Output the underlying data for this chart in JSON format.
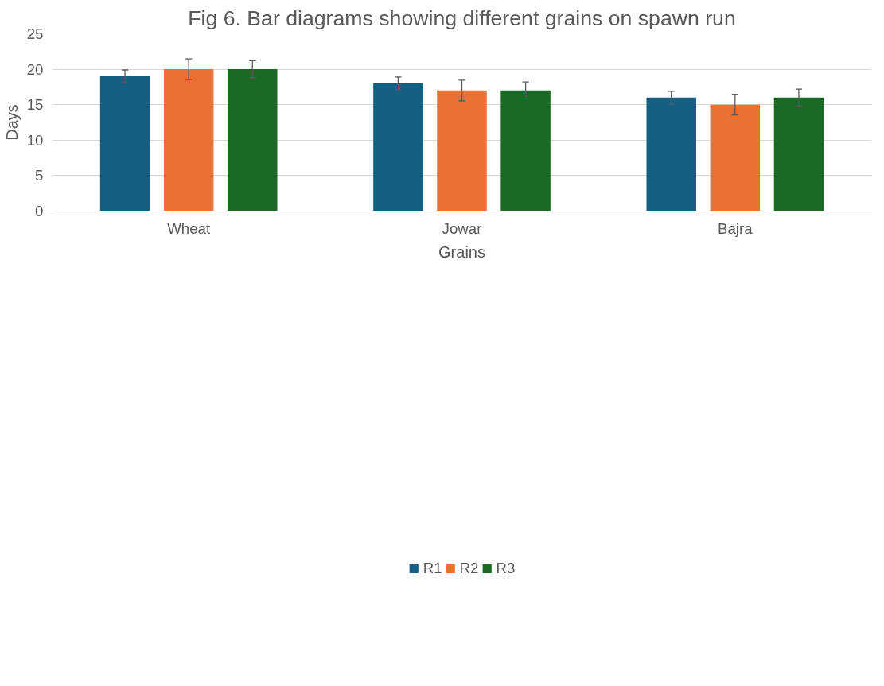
{
  "chart_data": {
    "type": "bar",
    "title": "Fig 6. Bar diagrams showing different grains on spawn run",
    "xlabel": "Grains",
    "ylabel": "Days",
    "categories": [
      "Wheat",
      "Jowar",
      "Bajra"
    ],
    "series": [
      {
        "name": "R1",
        "color": "#156082",
        "values": [
          19,
          18,
          16
        ],
        "errors": [
          0.9,
          0.9,
          0.9
        ]
      },
      {
        "name": "R2",
        "color": "#e97132",
        "values": [
          20,
          17,
          15
        ],
        "errors": [
          1.45,
          1.45,
          1.45
        ]
      },
      {
        "name": "R3",
        "color": "#196b24",
        "values": [
          20,
          17,
          16
        ],
        "errors": [
          1.2,
          1.2,
          1.2
        ]
      }
    ],
    "ylim": [
      0,
      25
    ],
    "yticks": [
      0,
      5,
      10,
      15,
      20,
      25
    ],
    "grid": "y",
    "legend": "bottom"
  }
}
